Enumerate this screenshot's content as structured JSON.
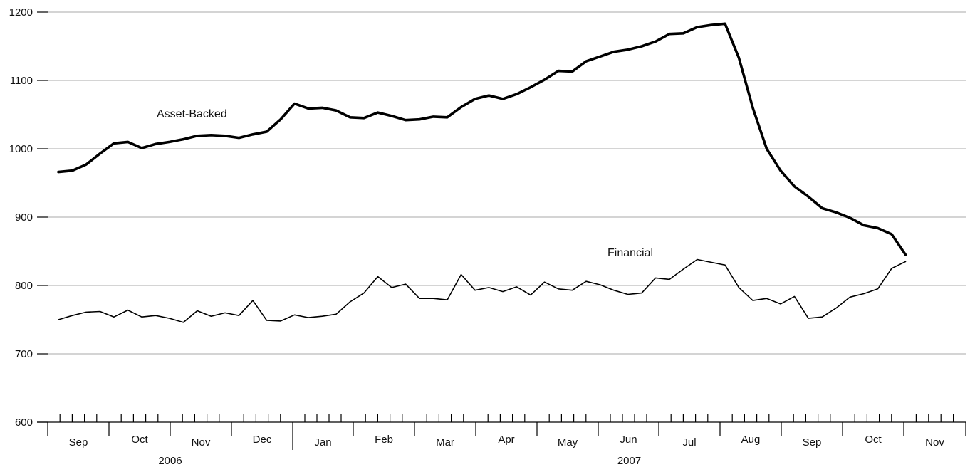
{
  "chart_data": {
    "type": "line",
    "title": "",
    "xlabel": "",
    "ylabel": "",
    "ylim": [
      600,
      1200
    ],
    "yticks": [
      600,
      700,
      800,
      900,
      1000,
      1100,
      1200
    ],
    "grid": true,
    "x_frequency": "weekly",
    "x_range": [
      "2006-08-01",
      "2007-11-30"
    ],
    "months": [
      {
        "label": "Sep"
      },
      {
        "label": "Oct"
      },
      {
        "label": "Nov"
      },
      {
        "label": "Dec"
      },
      {
        "label": "Jan"
      },
      {
        "label": "Feb"
      },
      {
        "label": "Mar"
      },
      {
        "label": "Apr"
      },
      {
        "label": "May"
      },
      {
        "label": "Jun"
      },
      {
        "label": "Jul"
      },
      {
        "label": "Aug"
      },
      {
        "label": "Sep"
      },
      {
        "label": "Oct"
      },
      {
        "label": "Nov"
      }
    ],
    "years": [
      {
        "label": "2006"
      },
      {
        "label": "2007"
      }
    ],
    "series": [
      {
        "name": "Asset-Backed",
        "style": "bold",
        "values": [
          966,
          968,
          977,
          993,
          1008,
          1010,
          1001,
          1007,
          1010,
          1014,
          1019,
          1020,
          1019,
          1016,
          1021,
          1025,
          1043,
          1066,
          1059,
          1060,
          1056,
          1046,
          1045,
          1053,
          1048,
          1042,
          1043,
          1047,
          1046,
          1061,
          1073,
          1078,
          1073,
          1080,
          1090,
          1101,
          1114,
          1113,
          1128,
          1135,
          1142,
          1145,
          1150,
          1157,
          1168,
          1169,
          1178,
          1181,
          1183,
          1133,
          1060,
          1000,
          968,
          945,
          930,
          913,
          907,
          899,
          888,
          884,
          875,
          845
        ]
      },
      {
        "name": "Financial",
        "style": "thin",
        "values": [
          750,
          756,
          761,
          762,
          754,
          764,
          754,
          756,
          752,
          746,
          763,
          755,
          760,
          756,
          778,
          749,
          748,
          757,
          753,
          755,
          758,
          776,
          789,
          813,
          797,
          802,
          781,
          781,
          779,
          816,
          793,
          797,
          791,
          798,
          786,
          805,
          795,
          793,
          806,
          801,
          793,
          787,
          789,
          811,
          809,
          824,
          838,
          834,
          830,
          797,
          778,
          781,
          773,
          784,
          752,
          754,
          767,
          783,
          788,
          795,
          825,
          835
        ]
      }
    ]
  }
}
